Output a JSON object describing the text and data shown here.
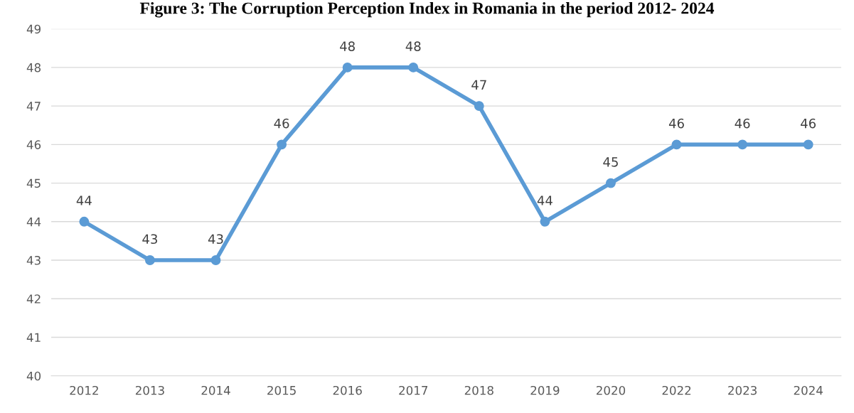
{
  "chart_data": {
    "type": "line",
    "title": "Figure 3: The Corruption Perception Index in Romania in the period 2012- 2024",
    "categories": [
      "2012",
      "2013",
      "2014",
      "2015",
      "2016",
      "2017",
      "2018",
      "2019",
      "2020",
      "2022",
      "2023",
      "2024"
    ],
    "series": [
      {
        "color": "#5b9bd5",
        "values": [
          44,
          43,
          43,
          46,
          48,
          48,
          47,
          44,
          45,
          46,
          46,
          46
        ]
      }
    ],
    "ylim": [
      40,
      49
    ],
    "yticks": [
      40,
      41,
      42,
      43,
      44,
      45,
      46,
      47,
      48,
      49
    ],
    "grid": "y",
    "marker": "circle",
    "line_style": "solid",
    "data_labels": true
  }
}
